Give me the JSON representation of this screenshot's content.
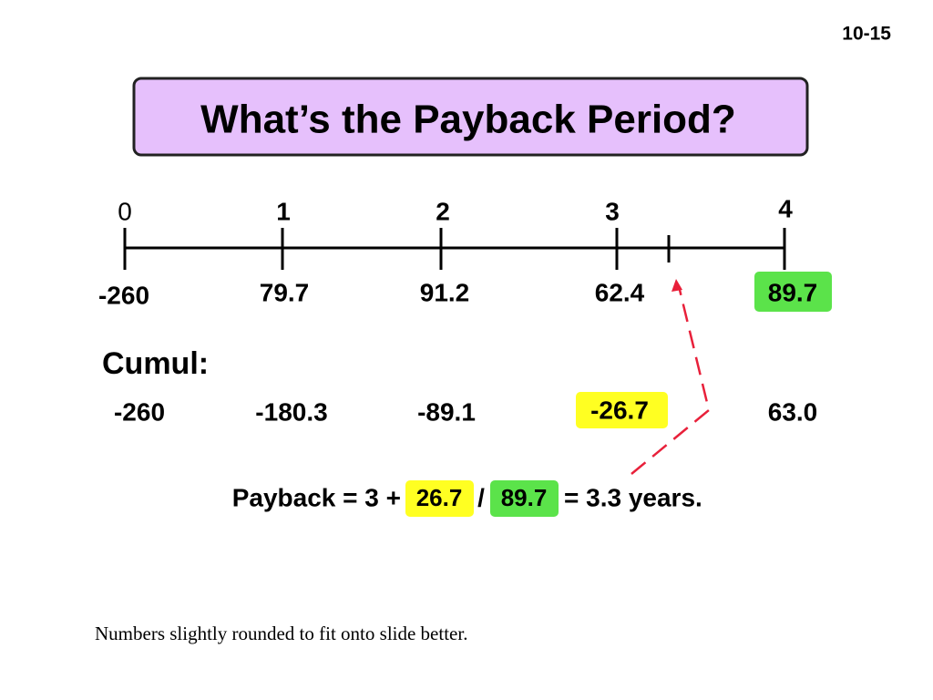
{
  "slide_number": "10-15",
  "title": "What’s the Payback Period?",
  "timeline": {
    "periods": [
      "0",
      "1",
      "2",
      "3",
      "4"
    ],
    "cash_flows": [
      "-260",
      "79.7",
      "91.2",
      "62.4",
      "89.7"
    ]
  },
  "cumulative": {
    "label": "Cumul:",
    "values": [
      "-260",
      "-180.3",
      "-89.1",
      "-26.7",
      "63.0"
    ]
  },
  "payback": {
    "prefix": "Payback = 3 +",
    "numerator": "26.7",
    "divider": "/",
    "denominator": "89.7",
    "result": "= 3.3 years."
  },
  "footnote": "Numbers slightly rounded to fit onto slide better."
}
